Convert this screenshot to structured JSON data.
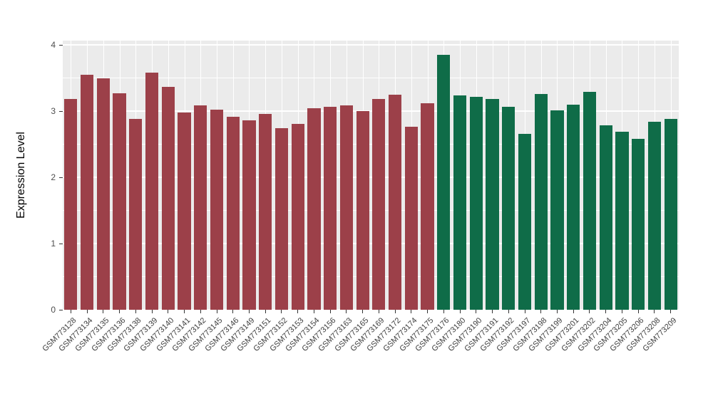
{
  "colors": {
    "page_background": "#FFFFFF",
    "panel_background": "#EBEBEB",
    "gridline": "#FFFFFF",
    "axis_text": "#4D4D4D",
    "bar_group1": "#9C4049",
    "bar_group2": "#0F6C48"
  },
  "chart_data": {
    "type": "bar",
    "title": "",
    "xlabel": "",
    "ylabel": "Expression Level",
    "ylim": [
      0,
      4
    ],
    "yticks": [
      0,
      1,
      2,
      3,
      4
    ],
    "grid": true,
    "legend": false,
    "group_split_index": 23,
    "categories": [
      "GSM773128",
      "GSM773134",
      "GSM773135",
      "GSM773136",
      "GSM773138",
      "GSM773139",
      "GSM773140",
      "GSM773141",
      "GSM773142",
      "GSM773145",
      "GSM773146",
      "GSM773149",
      "GSM773151",
      "GSM773152",
      "GSM773153",
      "GSM773154",
      "GSM773156",
      "GSM773163",
      "GSM773165",
      "GSM773169",
      "GSM773172",
      "GSM773174",
      "GSM773175",
      "GSM773176",
      "GSM773180",
      "GSM773190",
      "GSM773191",
      "GSM773192",
      "GSM773197",
      "GSM773198",
      "GSM773199",
      "GSM773201",
      "GSM773202",
      "GSM773204",
      "GSM773205",
      "GSM773206",
      "GSM773208",
      "GSM773209"
    ],
    "values": [
      3.18,
      3.55,
      3.5,
      3.27,
      2.88,
      3.58,
      3.37,
      2.98,
      3.09,
      3.02,
      2.91,
      2.86,
      2.96,
      2.74,
      2.81,
      3.04,
      3.07,
      3.09,
      3.0,
      3.18,
      3.25,
      2.76,
      3.12,
      3.85,
      3.24,
      3.21,
      3.18,
      3.07,
      2.66,
      3.26,
      3.01,
      3.1,
      3.29,
      2.78,
      2.69,
      2.58,
      2.84,
      2.88
    ]
  }
}
